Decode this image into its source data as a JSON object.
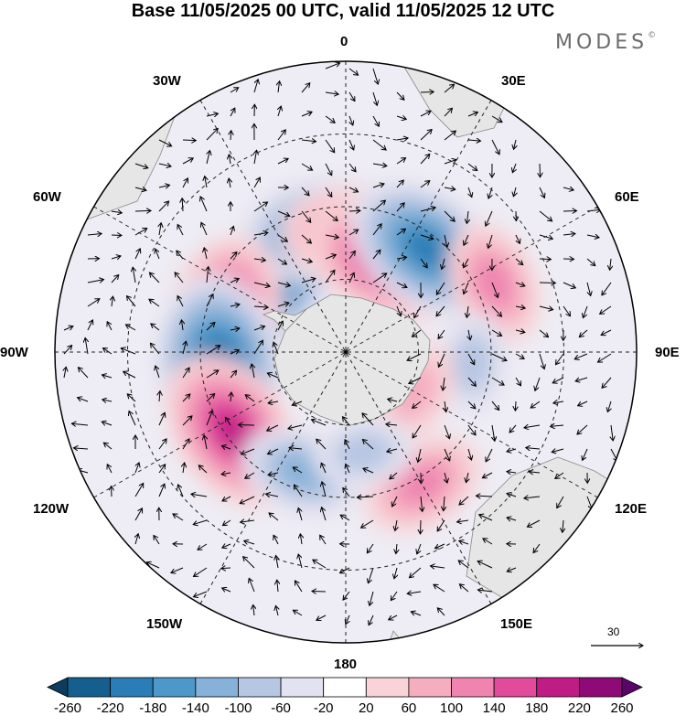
{
  "title": "Base 11/05/2025 00 UTC, valid 11/05/2025 12 UTC",
  "brand": "MODES",
  "brand_mark": "©",
  "longitude_labels": {
    "l0": "0",
    "l30e": "30E",
    "l60e": "60E",
    "l90e": "90E",
    "l120e": "120E",
    "l150e": "150E",
    "l180": "180",
    "l150w": "150W",
    "l120w": "120W",
    "l90w": "90W",
    "l60w": "60W",
    "l30w": "30W"
  },
  "reference_vector": {
    "label": "30"
  },
  "colorbar": {
    "labels": [
      "-260",
      "-220",
      "-180",
      "-140",
      "-100",
      "-60",
      "-20",
      "20",
      "60",
      "100",
      "140",
      "180",
      "220",
      "260"
    ],
    "colors": [
      "#0c3d5e",
      "#155f8f",
      "#2a7db6",
      "#4d98c9",
      "#86b1d8",
      "#b7c6e3",
      "#e3e2f0",
      "#ffffff",
      "#f8d3d7",
      "#f5aec0",
      "#ef84b1",
      "#e24a9c",
      "#c01c86",
      "#8e0a76",
      "#5b0569"
    ]
  },
  "anomalies": [
    {
      "sign": "neg",
      "level": 4,
      "lat": -62,
      "lon": -50
    },
    {
      "sign": "neg",
      "level": 3,
      "lat": -55,
      "lon": -15
    },
    {
      "sign": "pos",
      "level": 3,
      "lat": -58,
      "lon": 5
    },
    {
      "sign": "pos",
      "level": 4,
      "lat": -62,
      "lon": 25
    },
    {
      "sign": "neg",
      "level": 4,
      "lat": -54,
      "lon": 38
    },
    {
      "sign": "pos",
      "level": 2,
      "lat": -45,
      "lon": 65
    },
    {
      "sign": "neg",
      "level": 1,
      "lat": -55,
      "lon": 95
    },
    {
      "sign": "pos",
      "level": 4,
      "lat": -55,
      "lon": -75
    },
    {
      "sign": "neg",
      "level": 5,
      "lat": -55,
      "lon": -98
    },
    {
      "sign": "pos",
      "level": 4,
      "lat": -52,
      "lon": -125
    },
    {
      "sign": "neg",
      "level": 2,
      "lat": -55,
      "lon": -160
    },
    {
      "sign": "pos",
      "level": 2,
      "lat": -48,
      "lon": 150
    },
    {
      "sign": "pos",
      "level": 1,
      "lat": -68,
      "lon": 120
    },
    {
      "sign": "neg",
      "level": 1,
      "lat": -62,
      "lon": 170
    }
  ]
}
